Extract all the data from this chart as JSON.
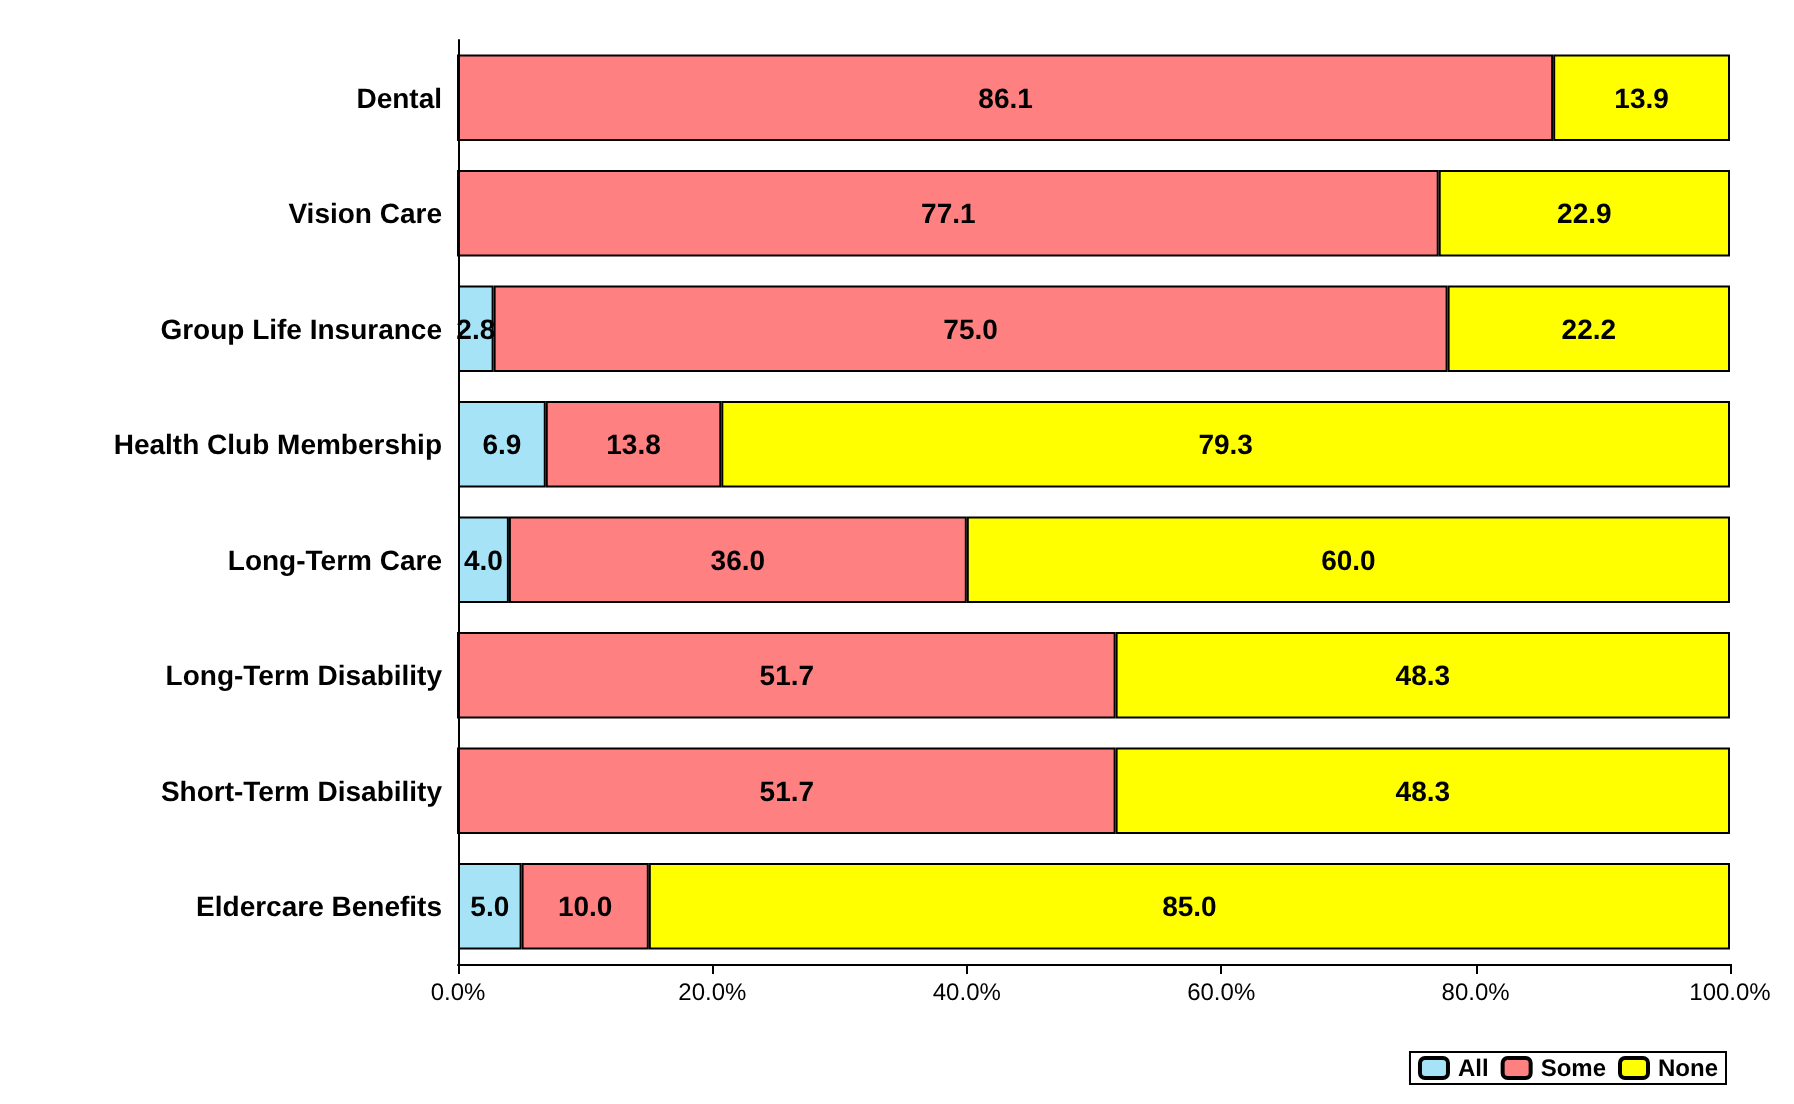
{
  "chart_data": {
    "type": "bar",
    "orientation": "horizontal",
    "stacked": true,
    "categories": [
      "Dental",
      "Vision Care",
      "Group Life Insurance",
      "Health Club Membership",
      "Long-Term Care",
      "Long-Term Disability",
      "Short-Term Disability",
      "Eldercare Benefits"
    ],
    "series": [
      {
        "name": "All",
        "color": "#a6e3f7",
        "values": [
          0,
          0,
          2.8,
          6.9,
          4.0,
          0,
          0,
          5.0
        ],
        "value_labels": [
          null,
          null,
          "2.8",
          "6.9",
          "4.0",
          null,
          null,
          "5.0"
        ]
      },
      {
        "name": "Some",
        "color": "#ff8080",
        "values": [
          86.1,
          77.1,
          75.0,
          13.8,
          36.0,
          51.7,
          51.7,
          10.0
        ],
        "value_labels": [
          "86.1",
          "77.1",
          "75.0",
          "13.8",
          "36.0",
          "51.7",
          "51.7",
          "10.0"
        ]
      },
      {
        "name": "None",
        "color": "#ffff00",
        "values": [
          13.9,
          22.9,
          22.2,
          79.3,
          60.0,
          48.3,
          48.3,
          85.0
        ],
        "value_labels": [
          "13.9",
          "22.9",
          "22.2",
          "79.3",
          "60.0",
          "48.3",
          "48.3",
          "85.0"
        ]
      }
    ],
    "xlim": [
      0,
      100
    ],
    "xticks": [
      {
        "value": 0,
        "label": "0.0%"
      },
      {
        "value": 20,
        "label": "20.0%"
      },
      {
        "value": 40,
        "label": "40.0%"
      },
      {
        "value": 60,
        "label": "60.0%"
      },
      {
        "value": 80,
        "label": "80.0%"
      },
      {
        "value": 100,
        "label": "100.0%"
      }
    ],
    "grid": false,
    "legend": "bottom right"
  }
}
